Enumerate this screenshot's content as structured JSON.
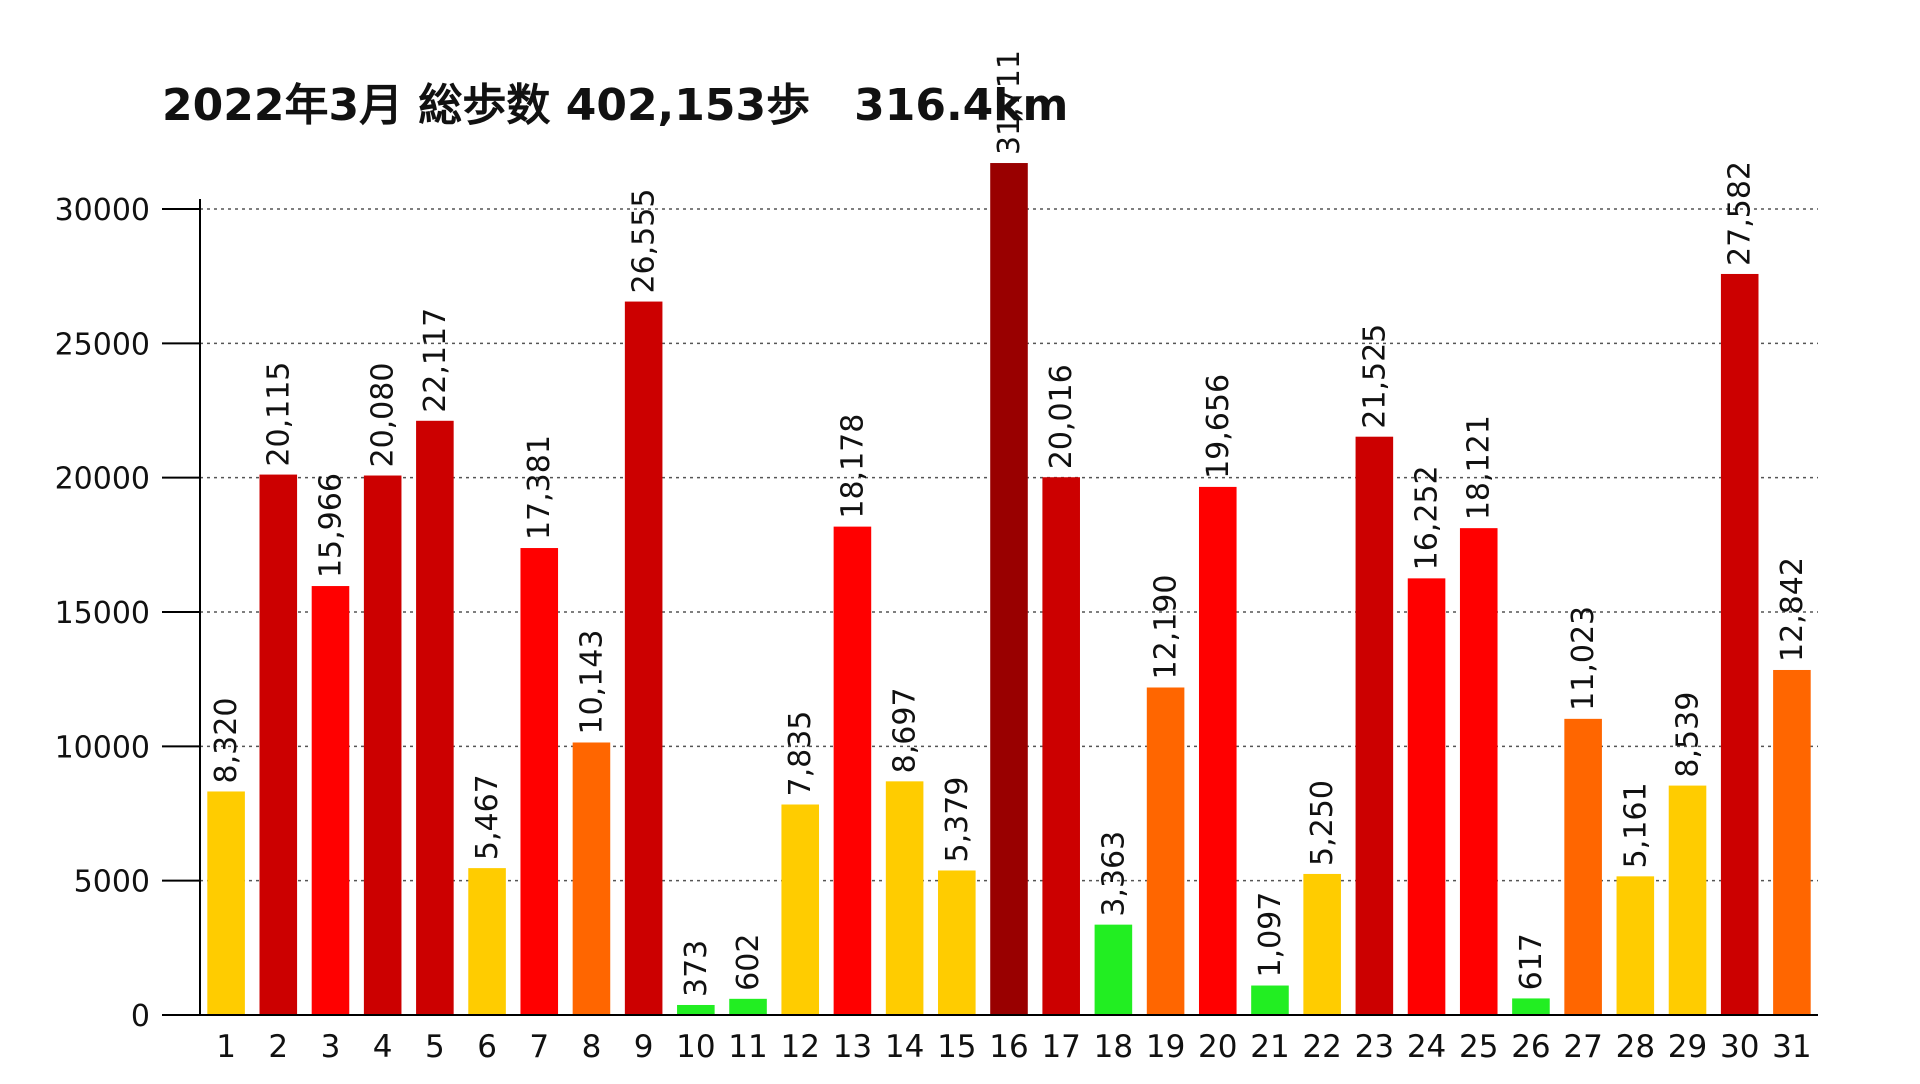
{
  "chart_data": {
    "type": "bar",
    "title": "2022年3月 総歩数 402,153歩　316.4km",
    "xlabel": "",
    "ylabel": "",
    "ylim": [
      0,
      30000
    ],
    "yticks": [
      0,
      5000,
      10000,
      15000,
      20000,
      25000,
      30000
    ],
    "grid": true,
    "legend": "none",
    "categories": [
      "1",
      "2",
      "3",
      "4",
      "5",
      "6",
      "7",
      "8",
      "9",
      "10",
      "11",
      "12",
      "13",
      "14",
      "15",
      "16",
      "17",
      "18",
      "19",
      "20",
      "21",
      "22",
      "23",
      "24",
      "25",
      "26",
      "27",
      "28",
      "29",
      "30",
      "31"
    ],
    "values": [
      8320,
      20115,
      15966,
      20080,
      22117,
      5467,
      17381,
      10143,
      26555,
      373,
      602,
      7835,
      18178,
      8697,
      5379,
      31711,
      20016,
      3363,
      12190,
      19656,
      1097,
      5250,
      21525,
      16252,
      18121,
      617,
      11023,
      5161,
      8539,
      27582,
      12842
    ],
    "value_labels": [
      "8,320",
      "20,115",
      "15,966",
      "20,080",
      "22,117",
      "5,467",
      "17,381",
      "10,143",
      "26,555",
      "373",
      "602",
      "7,835",
      "18,178",
      "8,697",
      "5,379",
      "31,711",
      "20,016",
      "3,363",
      "12,190",
      "19,656",
      "1,097",
      "5,250",
      "21,525",
      "16,252",
      "18,121",
      "617",
      "11,023",
      "5,161",
      "8,539",
      "27,582",
      "12,842"
    ],
    "color_scale": [
      {
        "min": 0,
        "color": "#22ee22"
      },
      {
        "min": 5000,
        "color": "#ffcc00"
      },
      {
        "min": 10000,
        "color": "#ff6600"
      },
      {
        "min": 15000,
        "color": "#ff0000"
      },
      {
        "min": 20000,
        "color": "#cc0000"
      },
      {
        "min": 30000,
        "color": "#990000"
      }
    ],
    "colors": {
      "axis": "#000000",
      "grid": "#555555",
      "text": "#111111"
    }
  }
}
